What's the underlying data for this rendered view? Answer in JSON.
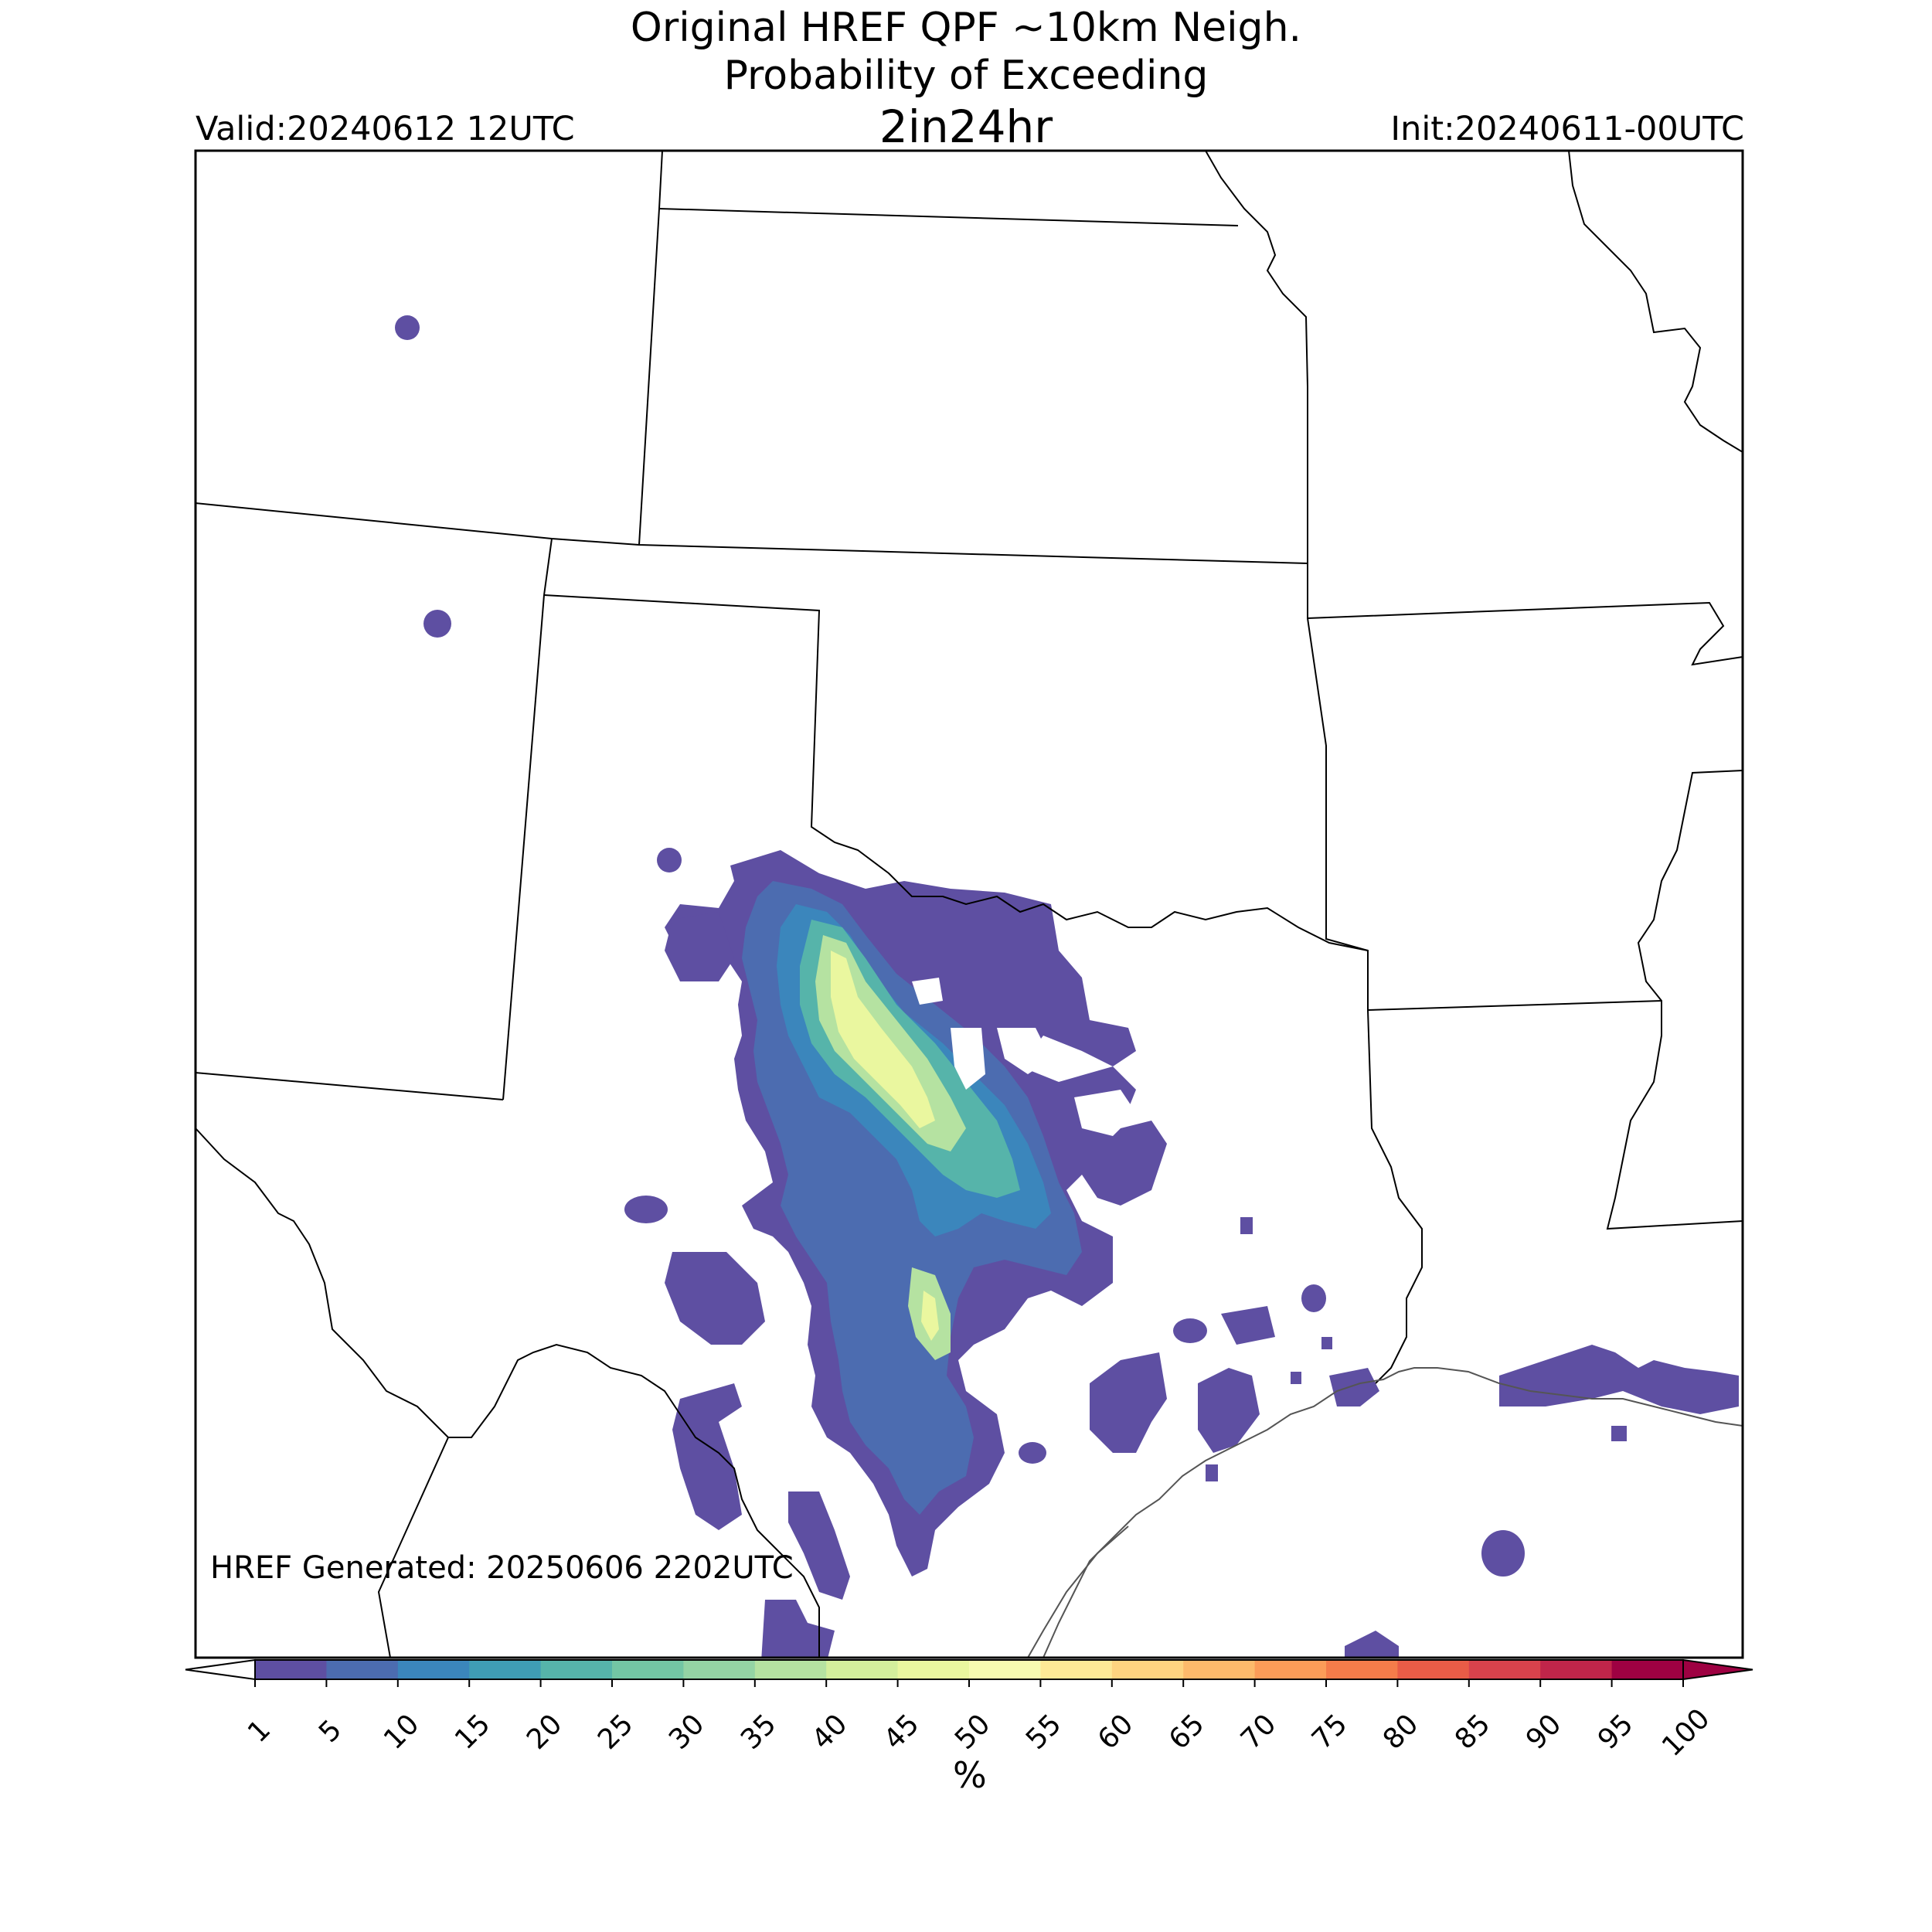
{
  "title": {
    "line1": "Original HREF QPF ~10km Neigh.",
    "line2": "Probability of Exceeding",
    "line3": "2in24hr"
  },
  "valid": "Valid:20240612 12UTC",
  "init": "Init:20240611-00UTC",
  "generated": "HREF Generated: 20250606 2202UTC",
  "colorbar": {
    "unit": "%",
    "ticks": [
      "1",
      "5",
      "10",
      "15",
      "20",
      "25",
      "30",
      "35",
      "40",
      "45",
      "50",
      "55",
      "60",
      "65",
      "70",
      "75",
      "80",
      "85",
      "90",
      "95",
      "100"
    ],
    "colors": [
      "#5e4fa2",
      "#4c6cb0",
      "#3b86bc",
      "#3f9db5",
      "#56b4aa",
      "#73c6a4",
      "#94d4a4",
      "#b5e2a1",
      "#d4ef9c",
      "#eaf79f",
      "#f7fbb1",
      "#fde996",
      "#fed480",
      "#fdba6b",
      "#fc9c58",
      "#f57c4a",
      "#e95c47",
      "#d8424c",
      "#c0254a",
      "#9e0142"
    ]
  },
  "probability_areas": [
    {
      "name": "central-texas-main",
      "level": "1-5%"
    },
    {
      "name": "central-texas-core",
      "level": "45-50%"
    },
    {
      "name": "south-texas-secondary",
      "level": "40-45%"
    },
    {
      "name": "louisiana-coast",
      "level": "1-5%"
    }
  ]
}
